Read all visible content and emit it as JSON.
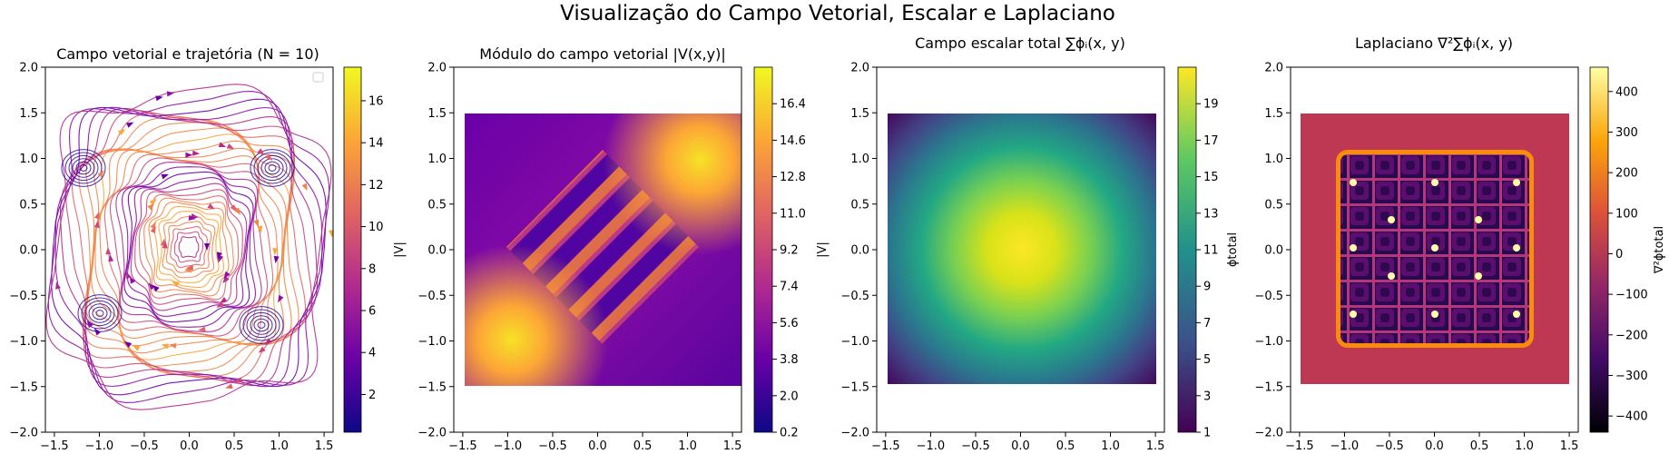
{
  "figure": {
    "suptitle": "Visualização do Campo Vetorial, Escalar e Laplaciano"
  },
  "chart_data": [
    {
      "type": "streamplot",
      "title": "Campo vetorial e trajetória (N = 10)",
      "xlim": [
        -2.0,
        2.0
      ],
      "ylim": [
        -2.0,
        2.0
      ],
      "xticks": [
        "−1.5",
        "−1.0",
        "−0.5",
        "0.0",
        "0.5",
        "1.0",
        "1.5"
      ],
      "yticks": [
        "−2.0",
        "−1.5",
        "−1.0",
        "−0.5",
        "0.0",
        "0.5",
        "1.0",
        "1.5",
        "2.0"
      ],
      "data_extent": [
        -1.5,
        1.5,
        -1.5,
        1.5
      ],
      "legend": "upper right (empty)",
      "colormap": "plasma",
      "colorbar": {
        "label": "|V|",
        "min": 0.2,
        "max": 17.6,
        "ticks": [
          "2",
          "4",
          "6",
          "8",
          "10",
          "12",
          "14",
          "16"
        ]
      }
    },
    {
      "type": "heatmap",
      "title": "Módulo do campo vetorial |V(x,y)|",
      "xlim": [
        -2.0,
        2.0
      ],
      "ylim": [
        -2.0,
        2.0
      ],
      "xticks": [
        "−1.5",
        "−1.0",
        "−0.5",
        "0.0",
        "0.5",
        "1.0",
        "1.5"
      ],
      "yticks": [
        "−2.0",
        "−1.5",
        "−1.0",
        "−0.5",
        "0.0",
        "0.5",
        "1.0",
        "1.5",
        "2.0"
      ],
      "data_extent": [
        -1.5,
        1.5,
        -1.5,
        1.5
      ],
      "colormap": "plasma",
      "colorbar": {
        "label": "|V|",
        "min": 0.2,
        "max": 18.2,
        "ticks": [
          "0.2",
          "2.0",
          "3.8",
          "5.6",
          "7.4",
          "9.2",
          "11.0",
          "12.8",
          "14.6",
          "16.4"
        ]
      }
    },
    {
      "type": "heatmap",
      "title": "Campo escalar total ∑ϕᵢ(x, y)",
      "xlim": [
        -2.0,
        2.0
      ],
      "ylim": [
        -2.0,
        2.0
      ],
      "xticks": [
        "−1.5",
        "−1.0",
        "−0.5",
        "0.0",
        "0.5",
        "1.0",
        "1.5"
      ],
      "yticks": [
        "−2.0",
        "−1.5",
        "−1.0",
        "−0.5",
        "0.0",
        "0.5",
        "1.0",
        "1.5",
        "2.0"
      ],
      "data_extent": [
        -1.5,
        1.5,
        -1.5,
        1.5
      ],
      "colormap": "viridis",
      "colorbar": {
        "label": "ϕtotal",
        "min": 1,
        "max": 21,
        "ticks": [
          "1",
          "3",
          "5",
          "7",
          "9",
          "11",
          "13",
          "15",
          "17",
          "19"
        ]
      }
    },
    {
      "type": "heatmap",
      "title": "Laplaciano ∇²∑ϕᵢ(x, y)",
      "xlim": [
        -2.0,
        2.0
      ],
      "ylim": [
        -2.0,
        2.0
      ],
      "xticks": [
        "−1.5",
        "−1.0",
        "−0.5",
        "0.0",
        "0.5",
        "1.0",
        "1.5"
      ],
      "yticks": [
        "−2.0",
        "−1.5",
        "−1.0",
        "−0.5",
        "0.0",
        "0.5",
        "1.0",
        "1.5",
        "2.0"
      ],
      "data_extent": [
        -1.5,
        1.5,
        -1.5,
        1.5
      ],
      "colormap": "inferno",
      "colorbar": {
        "label": "∇²ϕtotal",
        "min": -440,
        "max": 460,
        "ticks": [
          "−400",
          "−300",
          "−200",
          "−100",
          "0",
          "100",
          "200",
          "300",
          "400"
        ]
      }
    }
  ],
  "colors": {
    "plasma": [
      "#0d0887",
      "#6a00a8",
      "#b12a90",
      "#e16462",
      "#fca636",
      "#f0f921"
    ],
    "viridis": [
      "#440154",
      "#3b528b",
      "#21918c",
      "#5ec962",
      "#fde725"
    ],
    "inferno": [
      "#000004",
      "#420a68",
      "#932667",
      "#dd513a",
      "#fca50a",
      "#fcffa4"
    ]
  }
}
